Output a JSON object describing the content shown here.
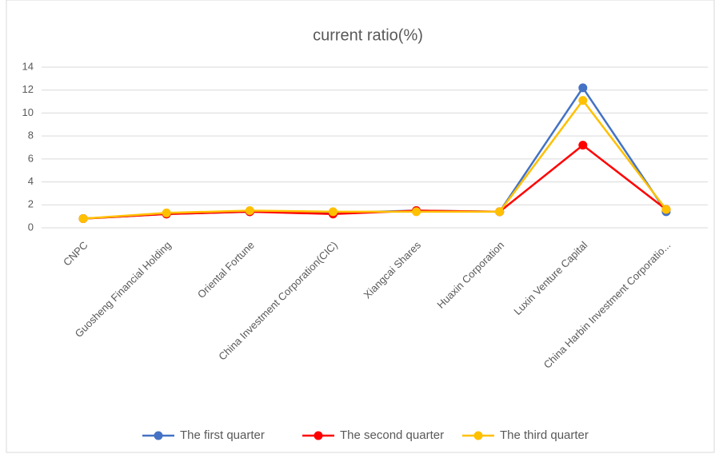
{
  "chart_data": {
    "type": "line",
    "title": "current ratio(%)",
    "categories": [
      "CNPC",
      "Guosheng Financial Holding",
      "Oriental Fortune",
      "China Investment Corporation(CIC)",
      "Xiangcai Shares",
      "Huaxin Corporation",
      "Luxin Venture Capital",
      "China Harbin Investment Corporatio..."
    ],
    "series": [
      {
        "name": "The first quarter",
        "color": "#4472c4",
        "values": [
          0.8,
          1.2,
          1.4,
          1.3,
          1.5,
          1.4,
          12.2,
          1.4
        ]
      },
      {
        "name": "The second quarter",
        "color": "#ff0000",
        "values": [
          0.8,
          1.2,
          1.4,
          1.2,
          1.5,
          1.4,
          7.2,
          1.6
        ]
      },
      {
        "name": "The third quarter",
        "color": "#ffc000",
        "values": [
          0.8,
          1.3,
          1.5,
          1.4,
          1.4,
          1.4,
          11.1,
          1.6
        ]
      }
    ],
    "ylim": [
      0,
      14
    ],
    "yticks": [
      0,
      2,
      4,
      6,
      8,
      10,
      12,
      14
    ],
    "grid": true,
    "legend": "bottom"
  }
}
